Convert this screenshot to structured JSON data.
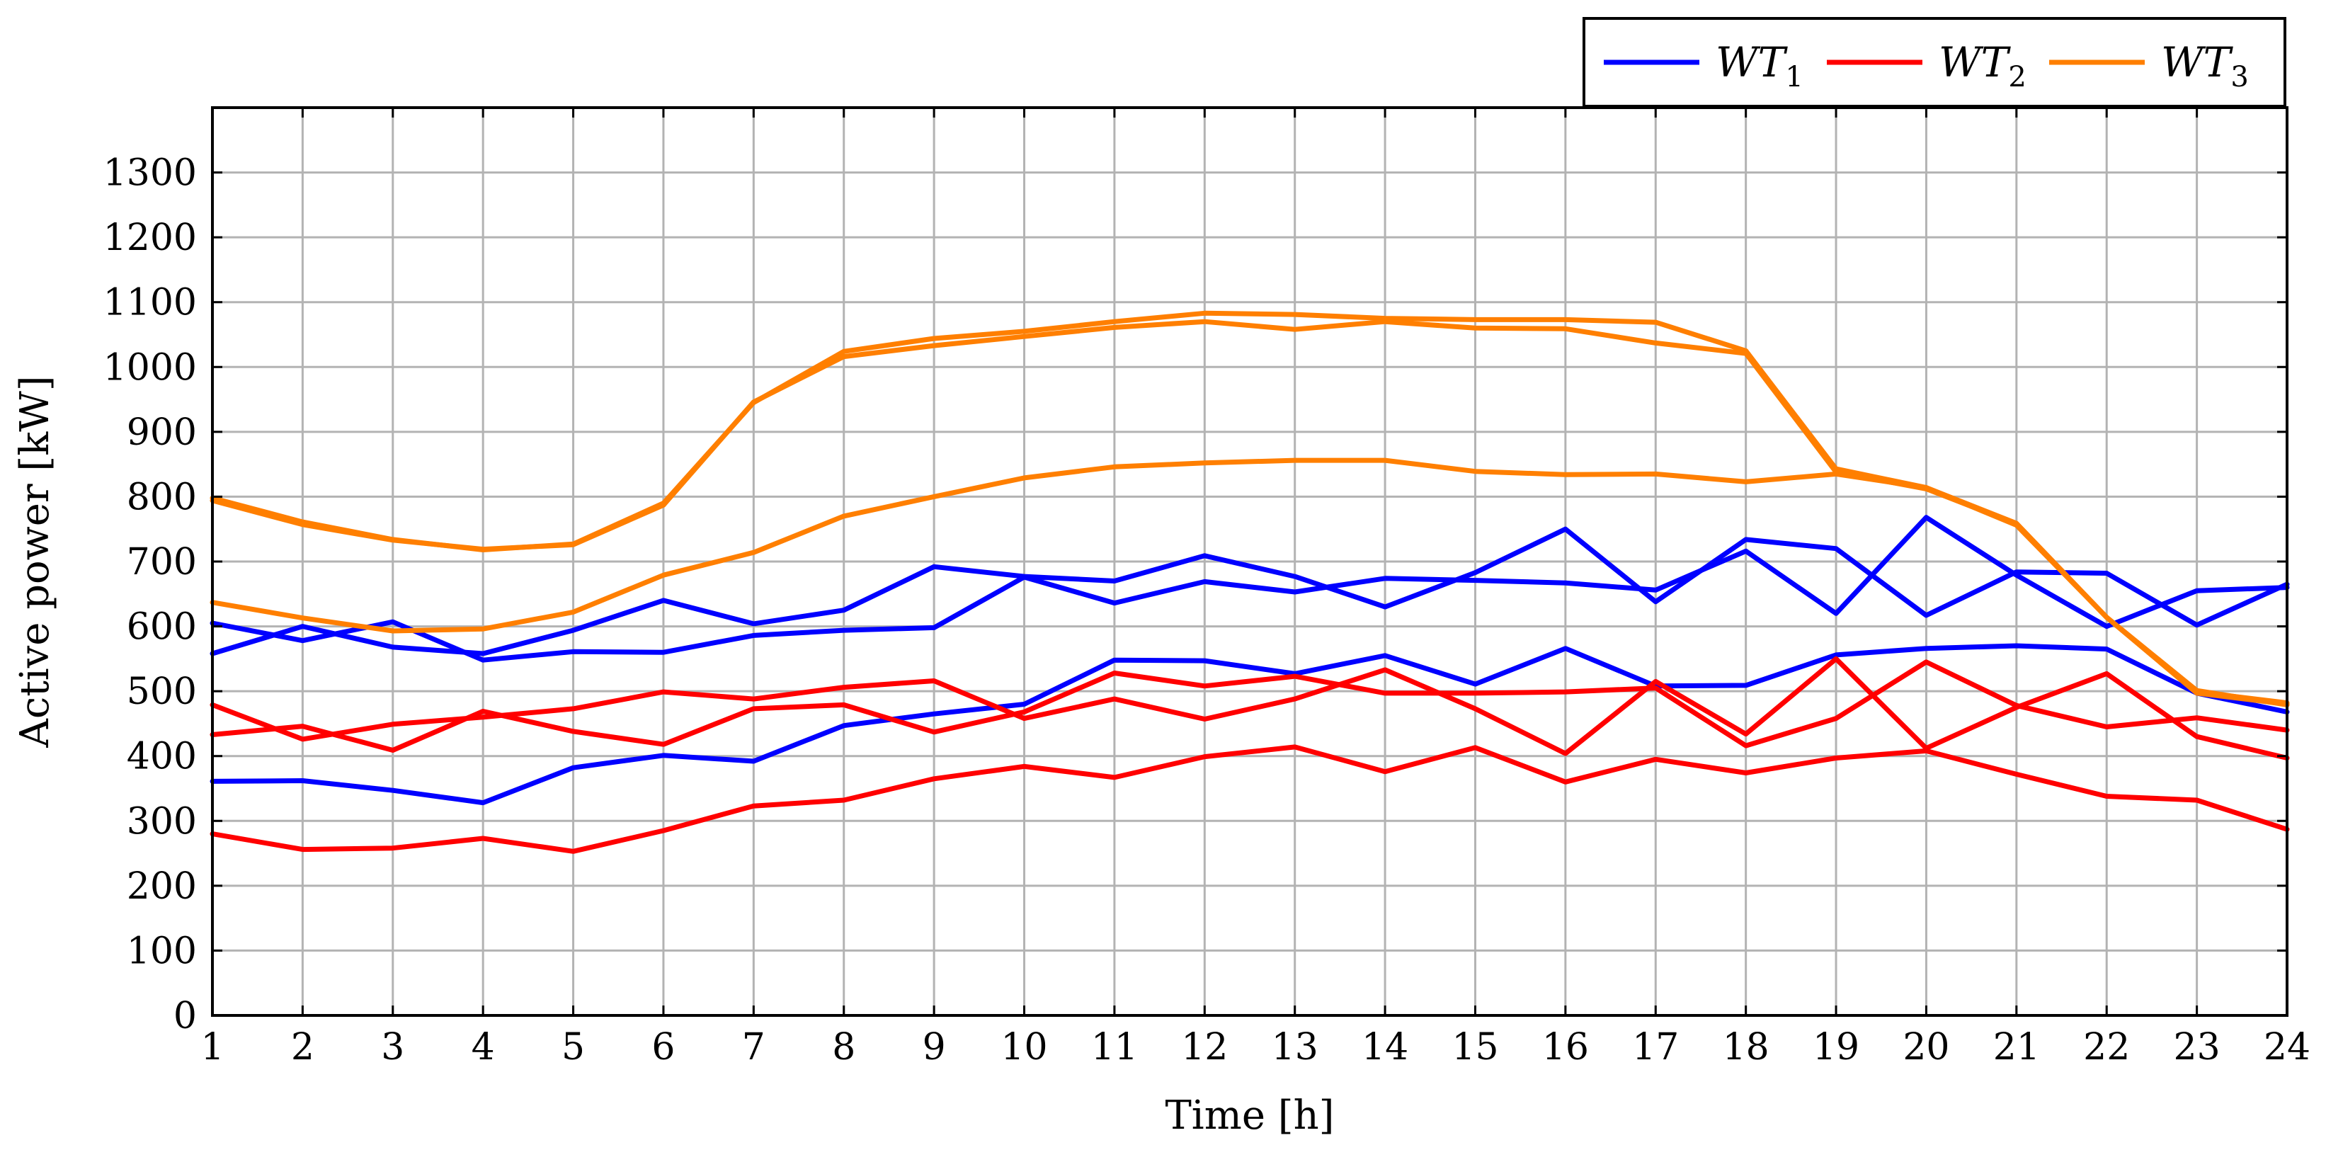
{
  "chart_data": {
    "type": "line",
    "title": "",
    "xlabel": "Time [h]",
    "ylabel": "Active power [kW]",
    "xlim": [
      1,
      24
    ],
    "ylim": [
      0,
      1400
    ],
    "x": [
      1,
      2,
      3,
      4,
      5,
      6,
      7,
      8,
      9,
      10,
      11,
      12,
      13,
      14,
      15,
      16,
      17,
      18,
      19,
      20,
      21,
      22,
      23,
      24
    ],
    "x_ticks": [
      1,
      2,
      3,
      4,
      5,
      6,
      7,
      8,
      9,
      10,
      11,
      12,
      13,
      14,
      15,
      16,
      17,
      18,
      19,
      20,
      21,
      22,
      23,
      24
    ],
    "y_ticks": [
      0,
      100,
      200,
      300,
      400,
      500,
      600,
      700,
      800,
      900,
      1000,
      1100,
      1200,
      1300
    ],
    "grid": true,
    "legend": {
      "placement": "top-right, above plot",
      "entries": [
        {
          "base": "WT",
          "sub": "1",
          "color": "#0000ff"
        },
        {
          "base": "WT",
          "sub": "2",
          "color": "#ff0000"
        },
        {
          "base": "WT",
          "sub": "3",
          "color": "#ff7f00"
        }
      ]
    },
    "series": [
      {
        "group": "WT1",
        "color": "#0000ff",
        "values": [
          558,
          600,
          568,
          558,
          594,
          640,
          604,
          625,
          692,
          677,
          670,
          709,
          677,
          630,
          683,
          750,
          638,
          734,
          720,
          617,
          684,
          682,
          602,
          665
        ]
      },
      {
        "group": "WT1",
        "color": "#0000ff",
        "values": [
          605,
          578,
          607,
          548,
          561,
          560,
          586,
          594,
          598,
          676,
          636,
          669,
          653,
          674,
          671,
          667,
          656,
          716,
          620,
          768,
          679,
          600,
          655,
          660
        ]
      },
      {
        "group": "WT1",
        "color": "#0000ff",
        "values": [
          361,
          362,
          347,
          328,
          382,
          401,
          392,
          447,
          465,
          480,
          548,
          547,
          527,
          555,
          511,
          566,
          508,
          509,
          556,
          566,
          570,
          565,
          497,
          468
        ]
      },
      {
        "group": "WT2",
        "color": "#ff0000",
        "values": [
          479,
          426,
          449,
          460,
          473,
          499,
          488,
          506,
          516,
          458,
          488,
          457,
          488,
          533,
          473,
          404,
          515,
          434,
          550,
          412,
          475,
          527,
          430,
          397
        ]
      },
      {
        "group": "WT2",
        "color": "#ff0000",
        "values": [
          433,
          446,
          409,
          469,
          438,
          418,
          473,
          479,
          437,
          468,
          528,
          508,
          523,
          497,
          497,
          499,
          505,
          416,
          458,
          545,
          478,
          445,
          459,
          440
        ]
      },
      {
        "group": "WT2",
        "color": "#ff0000",
        "values": [
          280,
          256,
          258,
          273,
          253,
          285,
          323,
          332,
          365,
          384,
          367,
          399,
          414,
          376,
          413,
          360,
          395,
          374,
          397,
          408,
          372,
          338,
          332,
          287
        ]
      },
      {
        "group": "WT3",
        "color": "#ff7f00",
        "values": [
          798,
          761,
          734,
          718,
          727,
          790,
          945,
          1024,
          1044,
          1055,
          1070,
          1083,
          1081,
          1075,
          1073,
          1073,
          1069,
          1025,
          843,
          814,
          759,
          614,
          501,
          479
        ]
      },
      {
        "group": "WT3",
        "color": "#ff7f00",
        "values": [
          794,
          757,
          733,
          719,
          726,
          787,
          946,
          1016,
          1033,
          1047,
          1061,
          1070,
          1058,
          1070,
          1060,
          1059,
          1037,
          1021,
          838,
          812,
          758,
          614,
          497,
          480
        ]
      },
      {
        "group": "WT3",
        "color": "#ff7f00",
        "values": [
          637,
          613,
          593,
          596,
          622,
          679,
          714,
          770,
          800,
          829,
          846,
          852,
          856,
          856,
          839,
          834,
          835,
          823,
          835,
          814,
          756,
          614,
          499,
          482
        ]
      }
    ]
  }
}
